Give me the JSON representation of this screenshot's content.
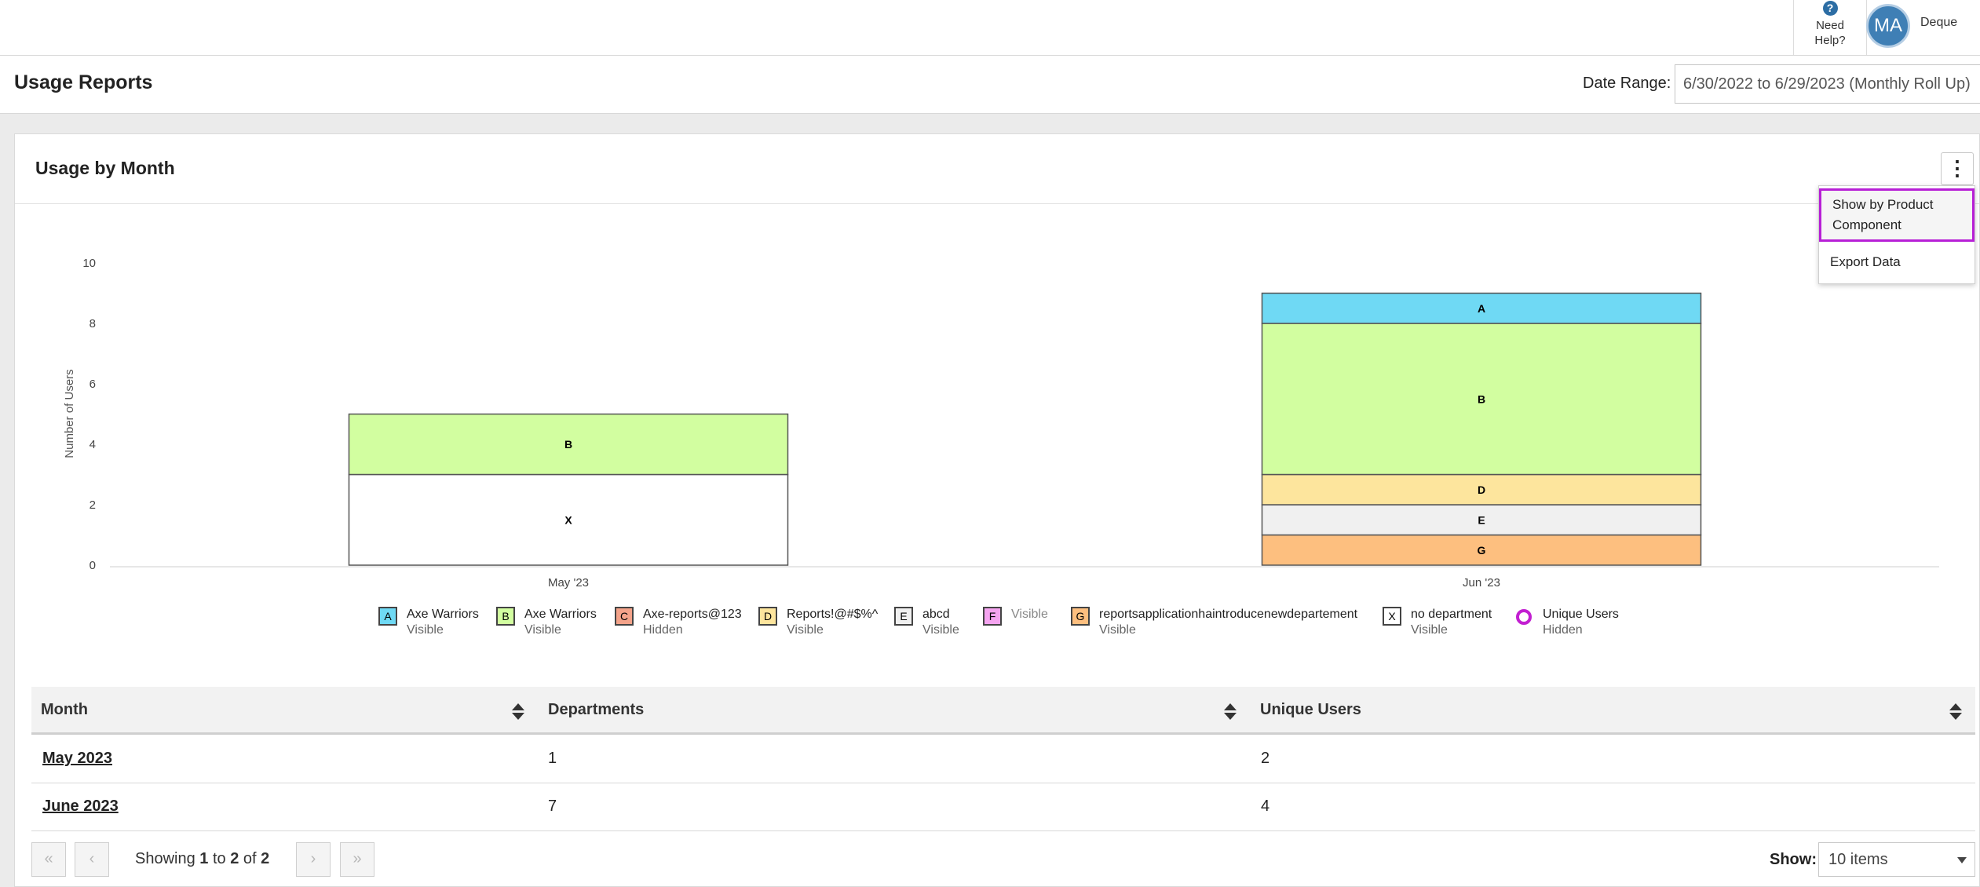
{
  "topbar": {
    "help_icon": "question-icon",
    "help_line1": "Need",
    "help_line2": "Help?",
    "avatar_initials": "MA",
    "username": "Deque"
  },
  "page": {
    "title": "Usage Reports",
    "date_range_label": "Date Range:",
    "date_range_value": "6/30/2022 to 6/29/2023 (Monthly Roll Up)"
  },
  "card": {
    "title": "Usage by Month",
    "menu_icon": "kebab-menu-icon",
    "menu": {
      "item1_line1": "Show by Product",
      "item1_line2": "Component",
      "item2": "Export Data"
    }
  },
  "chart_data": {
    "type": "bar",
    "stacked": true,
    "ylabel": "Number of Users",
    "ylim": [
      0,
      10
    ],
    "yticks": [
      0,
      2,
      4,
      6,
      8,
      10
    ],
    "categories": [
      "May '23",
      "Jun '23"
    ],
    "series": [
      {
        "key": "G",
        "color": "#fdbf7f",
        "values": [
          0,
          1
        ]
      },
      {
        "key": "E",
        "color": "#f0f0f0",
        "values": [
          0,
          1
        ]
      },
      {
        "key": "D",
        "color": "#fde59d",
        "values": [
          0,
          1
        ]
      },
      {
        "key": "X",
        "color": "#ffffff",
        "values": [
          3,
          0
        ]
      },
      {
        "key": "B",
        "color": "#d2fea0",
        "values": [
          2,
          5
        ]
      },
      {
        "key": "A",
        "color": "#6fd9f4",
        "values": [
          0,
          1
        ]
      }
    ],
    "legend": [
      {
        "key": "A",
        "name": "Axe Warriors",
        "status": "Visible",
        "color": "#6fd9f4"
      },
      {
        "key": "B",
        "name": "Axe Warriors",
        "status": "Visible",
        "color": "#d2fea0"
      },
      {
        "key": "C",
        "name": "Axe-reports@123",
        "status": "Hidden",
        "color": "#f4a38a"
      },
      {
        "key": "D",
        "name": "Reports!@#$%^",
        "status": "Visible",
        "color": "#fde59d"
      },
      {
        "key": "E",
        "name": "abcd",
        "status": "Visible",
        "color": "#f0f0f0"
      },
      {
        "key": "F",
        "name": "Visible",
        "status": "",
        "color": "#f5a4f0"
      },
      {
        "key": "G",
        "name": "reportsapplicationhaintroducenewdepartement",
        "status": "Visible",
        "color": "#fdbf7f"
      },
      {
        "key": "X",
        "name": "no department",
        "status": "Visible",
        "color": "#ffffff"
      },
      {
        "key": "",
        "name": "Unique Users",
        "status": "Hidden",
        "color": "#c21fd1"
      }
    ]
  },
  "table": {
    "headers": [
      "Month",
      "Departments",
      "Unique Users"
    ],
    "rows": [
      {
        "month": "May 2023",
        "departments": "1",
        "unique_users": "2"
      },
      {
        "month": "June 2023",
        "departments": "7",
        "unique_users": "4"
      }
    ]
  },
  "pager": {
    "first_icon": "double-chevron-left-icon",
    "prev_icon": "chevron-left-icon",
    "next_icon": "chevron-right-icon",
    "last_icon": "double-chevron-right-icon",
    "showing_prefix": "Showing",
    "from": "1",
    "to_word": "to",
    "to": "2",
    "of_word": "of",
    "total": "2",
    "show_label": "Show:",
    "show_value": "10 items"
  }
}
